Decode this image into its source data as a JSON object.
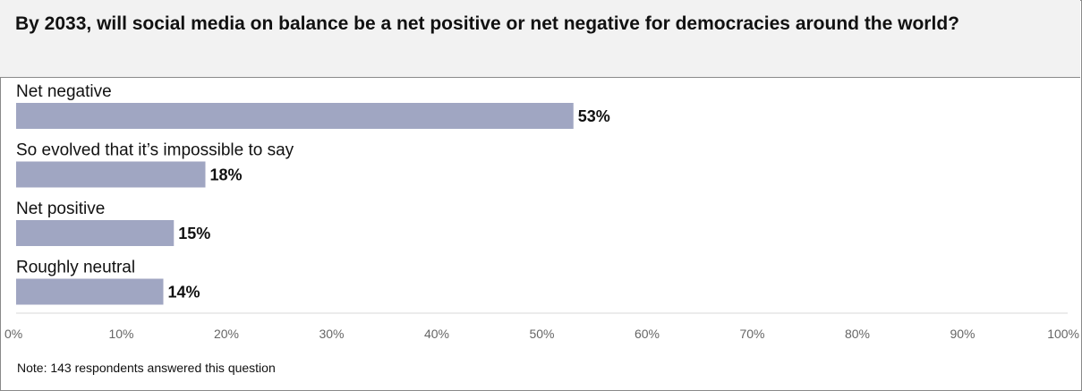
{
  "chart_data": {
    "type": "bar",
    "orientation": "horizontal",
    "title": "By 2033, will social media on balance be a net positive or net negative for democracies around the world?",
    "categories": [
      "Net negative",
      "So evolved that it’s impossible to say",
      "Net positive",
      "Roughly neutral"
    ],
    "values": [
      53,
      18,
      15,
      14
    ],
    "value_labels": [
      "53%",
      "18%",
      "15%",
      "14%"
    ],
    "xlim": [
      0,
      100
    ],
    "x_ticks": [
      0,
      10,
      20,
      30,
      40,
      50,
      60,
      70,
      80,
      90,
      100
    ],
    "x_tick_labels": [
      "0%",
      "10%",
      "20%",
      "30%",
      "40%",
      "50%",
      "60%",
      "70%",
      "80%",
      "90%",
      "100%"
    ],
    "grid": false,
    "legend": "none",
    "bar_color": "#a0a6c2",
    "note": "Note: 143 respondents answered this question"
  }
}
